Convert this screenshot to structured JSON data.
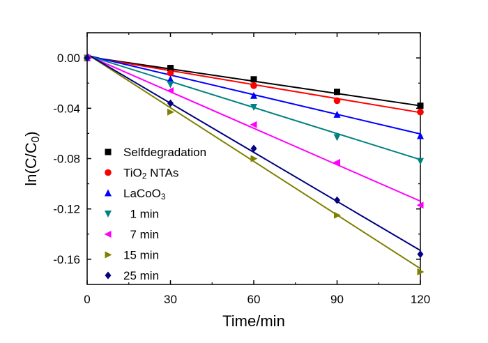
{
  "chart_data": {
    "type": "scatter",
    "title": "",
    "xlabel": "Time/min",
    "ylabel_parts": [
      {
        "text": "ln(C/C",
        "sub": false
      },
      {
        "text": "0",
        "sub": true
      },
      {
        "text": ")",
        "sub": false
      }
    ],
    "xlim": [
      0,
      120
    ],
    "ylim": [
      -0.18,
      0.02
    ],
    "xticks": [
      0,
      30,
      60,
      90,
      120
    ],
    "xtick_labels": [
      "0",
      "30",
      "60",
      "90",
      "120"
    ],
    "yticks": [
      0.0,
      -0.04,
      -0.08,
      -0.12,
      -0.16
    ],
    "ytick_labels": [
      "0.00",
      "-0.04",
      "-0.08",
      "-0.12",
      "-0.16"
    ],
    "grid": false,
    "legend_position": "bottom-left",
    "fit_lines": true,
    "series": [
      {
        "key": "selfdegradation",
        "label_parts": [
          {
            "text": "Selfdegradation",
            "sub": false
          }
        ],
        "marker": "square",
        "color": "#000000",
        "x": [
          0,
          30,
          60,
          90,
          120
        ],
        "y": [
          0.0,
          -0.008,
          -0.017,
          -0.027,
          -0.038
        ],
        "fit": [
          0.001,
          -0.000325
        ]
      },
      {
        "key": "tio2",
        "label_parts": [
          {
            "text": "TiO",
            "sub": false
          },
          {
            "text": "2",
            "sub": true
          },
          {
            "text": " NTAs",
            "sub": false
          }
        ],
        "marker": "circle",
        "color": "#ff0000",
        "x": [
          0,
          30,
          60,
          90,
          120
        ],
        "y": [
          0.0,
          -0.012,
          -0.022,
          -0.034,
          -0.043
        ],
        "fit": [
          0.001,
          -0.00037
        ]
      },
      {
        "key": "lacoo3",
        "label_parts": [
          {
            "text": "LaCoO",
            "sub": false
          },
          {
            "text": "3",
            "sub": true
          }
        ],
        "marker": "triangle-up",
        "color": "#0000ff",
        "x": [
          0,
          30,
          60,
          90,
          120
        ],
        "y": [
          0.0,
          -0.017,
          -0.03,
          -0.045,
          -0.062
        ],
        "fit": [
          0.002,
          -0.00052
        ]
      },
      {
        "key": "min1",
        "label_parts": [
          {
            "text": "  1 min",
            "sub": false
          }
        ],
        "marker": "triangle-down",
        "color": "#008080",
        "x": [
          0,
          30,
          60,
          90,
          120
        ],
        "y": [
          0.0,
          -0.021,
          -0.039,
          -0.063,
          -0.082
        ],
        "fit": [
          0.002,
          -0.00069
        ]
      },
      {
        "key": "min7",
        "label_parts": [
          {
            "text": "  7 min",
            "sub": false
          }
        ],
        "marker": "triangle-left",
        "color": "#ff00ff",
        "x": [
          0,
          30,
          60,
          90,
          120
        ],
        "y": [
          0.0,
          -0.026,
          -0.053,
          -0.083,
          -0.117
        ],
        "fit": [
          0.002,
          -0.000965
        ]
      },
      {
        "key": "min15",
        "label_parts": [
          {
            "text": "15 min",
            "sub": false
          }
        ],
        "marker": "triangle-right",
        "color": "#808000",
        "x": [
          0,
          30,
          60,
          90,
          120
        ],
        "y": [
          0.0,
          -0.043,
          -0.08,
          -0.125,
          -0.17
        ],
        "fit": [
          0.003,
          -0.00142
        ]
      },
      {
        "key": "min25",
        "label_parts": [
          {
            "text": "25 min",
            "sub": false
          }
        ],
        "marker": "diamond",
        "color": "#000080",
        "x": [
          0,
          30,
          60,
          90,
          120
        ],
        "y": [
          0.0,
          -0.036,
          -0.072,
          -0.113,
          -0.156
        ],
        "fit": [
          0.003,
          -0.0013
        ]
      }
    ]
  }
}
